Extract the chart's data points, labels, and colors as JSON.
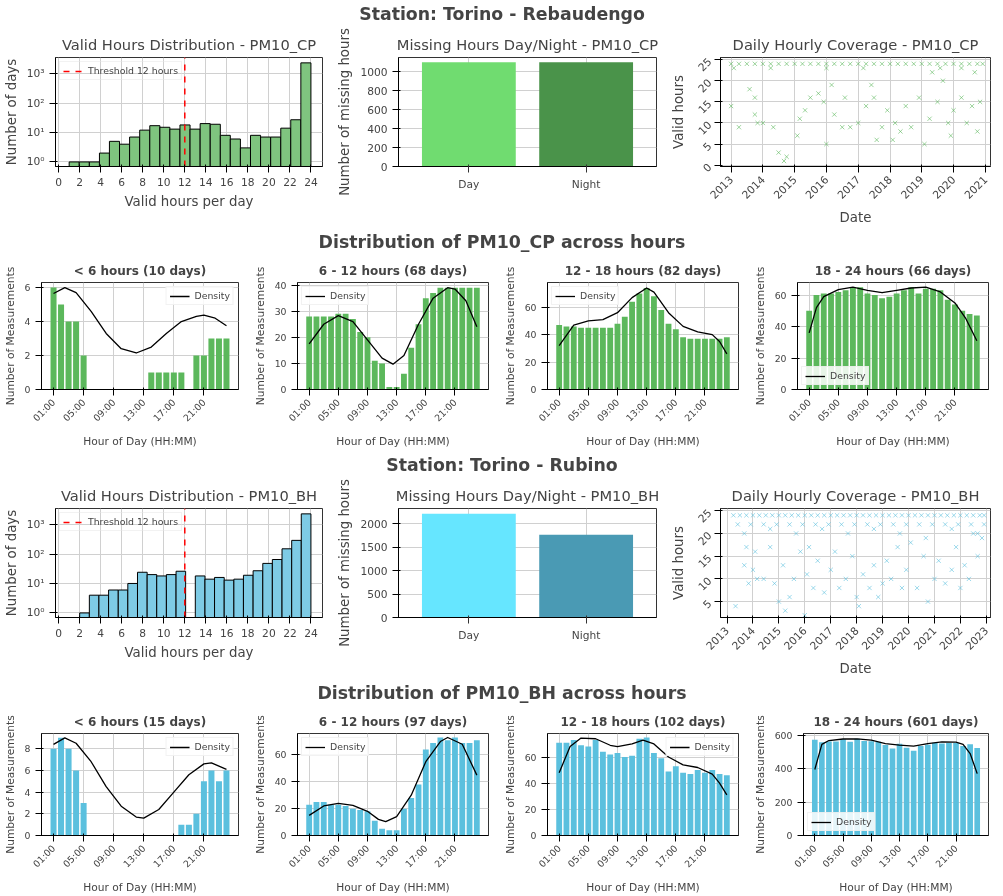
{
  "chart_data": [
    {
      "type": "other",
      "title": "Station: Torino - Rebaudengo"
    },
    {
      "type": "histogram",
      "title": "Valid Hours Distribution - PM10_CP",
      "xlabel": "Valid hours per day",
      "ylabel": "Number of days",
      "log": true,
      "grid": true,
      "legend": "top left",
      "color": "#7fc47f",
      "bins": [
        1,
        1.96,
        2.92,
        3.88,
        4.83,
        5.79,
        6.75,
        7.71,
        8.67,
        9.63,
        10.58,
        11.54,
        12.5,
        13.46,
        14.42,
        15.38,
        16.33,
        17.29,
        18.25,
        19.21,
        20.17,
        21.13,
        22.08,
        23.04,
        24
      ],
      "values": [
        1,
        1,
        1,
        2,
        5,
        4,
        7,
        12,
        17,
        15,
        13,
        18,
        13,
        20,
        19,
        8,
        6,
        3,
        8,
        7,
        7,
        14,
        27,
        2300
      ],
      "xlim": [
        -0.3,
        25.1
      ],
      "xticks": [
        0,
        2,
        4,
        6,
        8,
        10,
        12,
        14,
        16,
        18,
        20,
        22,
        24
      ],
      "ylim": [
        0.7,
        3500
      ],
      "yticks": [
        {
          "value": 1,
          "label": "10⁰"
        },
        {
          "value": 10,
          "label": "10¹"
        },
        {
          "value": 100,
          "label": "10²"
        },
        {
          "value": 1000,
          "label": "10³"
        }
      ],
      "ref_lines": [
        {
          "axis": "x",
          "value": 12,
          "label": "Threshold 12 hours",
          "color": "#ff0000",
          "line_style": "dashed"
        }
      ]
    },
    {
      "type": "bar",
      "title": "Missing Hours Day/Night - PM10_CP",
      "ylabel": "Number of missing hours",
      "grid": true,
      "categories": [
        "Day",
        "Night"
      ],
      "values": [
        1100,
        1100
      ],
      "colors": [
        "#70dc70",
        "#4a934a"
      ],
      "ylim": [
        0,
        1150
      ],
      "yticks": [
        0,
        200,
        400,
        600,
        800,
        1000
      ]
    },
    {
      "type": "scatter",
      "title": "Daily Hourly Coverage - PM10_CP",
      "xlabel": "Date",
      "ylabel": "Valid hours",
      "grid": true,
      "marker": "cross",
      "color": "#5cb85c",
      "x": [
        "2013-01",
        "2013-08",
        "2013-10",
        "2013-04",
        "2013-10",
        "2013-11",
        "2014-01",
        "2014-09",
        "2014-07",
        "2014-10",
        "2014-05",
        "2015-02",
        "2015-03",
        "2015-05",
        "2015-07",
        "2015-10",
        "2015-12",
        "2016-03",
        "2016-04",
        "2016-01",
        "2016-07",
        "2016-08",
        "2016-10",
        "2017-01",
        "2017-04",
        "2017-06",
        "2017-07",
        "2017-08",
        "2017-10",
        "2017-12",
        "2018-02",
        "2018-03",
        "2018-05",
        "2018-07",
        "2018-09",
        "2018-12",
        "2019-02",
        "2019-04",
        "2019-05",
        "2019-07",
        "2019-09",
        "2019-11",
        "2019-12",
        "2020-01",
        "2020-04",
        "2020-06",
        "2020-08",
        "2020-09",
        "2020-10",
        "2020-11",
        "2013-02",
        "2014-04",
        "2016-01",
        "2017-03",
        "2019-08",
        "2020-04",
        "2013-01",
        "2013-04",
        "2013-07",
        "2013-10",
        "2014-01",
        "2014-04",
        "2014-07",
        "2014-10",
        "2015-01",
        "2015-04",
        "2015-07",
        "2015-10",
        "2016-01",
        "2016-04",
        "2016-07",
        "2016-10",
        "2017-01",
        "2017-04",
        "2017-07",
        "2017-10",
        "2018-01",
        "2018-04",
        "2018-07",
        "2018-10",
        "2019-01",
        "2019-04",
        "2019-07",
        "2019-10",
        "2020-01",
        "2020-04",
        "2020-07",
        "2020-10",
        "2020-12"
      ],
      "values": [
        14,
        18,
        16,
        9,
        12,
        10,
        10,
        1,
        3,
        2,
        9,
        7,
        11,
        13,
        16,
        17,
        15,
        19,
        12,
        5,
        9,
        16,
        9,
        10,
        14,
        19,
        16,
        6,
        9,
        13,
        6,
        10,
        8,
        14,
        9,
        16,
        5,
        11,
        22,
        15,
        20,
        10,
        7,
        13,
        16,
        10,
        14,
        22,
        8,
        15,
        23,
        23,
        23,
        23,
        23,
        23,
        24,
        24,
        24,
        24,
        24,
        24,
        24,
        24,
        24,
        24,
        24,
        24,
        24,
        24,
        24,
        24,
        24,
        24,
        24,
        24,
        24,
        24,
        24,
        24,
        24,
        24,
        24,
        24,
        24,
        24,
        24,
        24,
        24
      ],
      "xlim": [
        "2012-09",
        "2021-03"
      ],
      "xticks": [
        "2013",
        "2014",
        "2015",
        "2016",
        "2017",
        "2018",
        "2019",
        "2020",
        "2021"
      ],
      "ylim": [
        -0.3,
        25.5
      ],
      "yticks": [
        0,
        5,
        10,
        15,
        20,
        25
      ]
    },
    {
      "type": "other",
      "title": "Distribution of PM10_CP across hours"
    },
    {
      "type": "bar",
      "title": "< 6 hours (10 days)",
      "xlabel": "Hour of Day (HH:MM)",
      "ylabel": "Number of Measurements",
      "grid": true,
      "legend": "top right",
      "x": [
        1,
        2,
        3,
        4,
        5,
        6,
        7,
        8,
        9,
        10,
        11,
        12,
        13,
        14,
        15,
        16,
        17,
        18,
        19,
        20,
        21,
        22,
        23,
        24
      ],
      "xlim": [
        -0.6,
        25.6
      ],
      "xticks": [
        {
          "value": 1,
          "label": "01:00"
        },
        {
          "value": 5,
          "label": "05:00"
        },
        {
          "value": 9,
          "label": "09:00"
        },
        {
          "value": 13,
          "label": "13:00"
        },
        {
          "value": 17,
          "label": "17:00"
        },
        {
          "value": 21,
          "label": "21:00"
        }
      ],
      "ylim": [
        0,
        6.3
      ],
      "yticks": [
        0,
        2,
        4,
        6
      ],
      "series": [
        {
          "color": "#5cb85c",
          "values": [
            6,
            5,
            4,
            4,
            2,
            0,
            0,
            0,
            0,
            0,
            0,
            0,
            0,
            1,
            1,
            1,
            1,
            1,
            0,
            2,
            2,
            3,
            3,
            3
          ]
        },
        {
          "type": "line",
          "name": "Density",
          "color": "#000000",
          "x": [
            1,
            2.5,
            4,
            6,
            8,
            10,
            12,
            14,
            16,
            18,
            20,
            21,
            22.5,
            24
          ],
          "values": [
            5.65,
            6.0,
            5.7,
            4.6,
            3.3,
            2.4,
            2.15,
            2.5,
            3.3,
            4.0,
            4.3,
            4.38,
            4.2,
            3.75
          ]
        }
      ]
    },
    {
      "type": "bar",
      "title": "6 - 12 hours (68 days)",
      "xlabel": "Hour of Day (HH:MM)",
      "ylabel": "Number of Measurements",
      "grid": true,
      "legend": "top left",
      "x": [
        1,
        2,
        3,
        4,
        5,
        6,
        7,
        8,
        9,
        10,
        11,
        12,
        13,
        14,
        15,
        16,
        17,
        18,
        19,
        20,
        21,
        22,
        23,
        24
      ],
      "xlim": [
        -0.6,
        25.6
      ],
      "xticks": [
        {
          "value": 1,
          "label": "01:00"
        },
        {
          "value": 5,
          "label": "05:00"
        },
        {
          "value": 9,
          "label": "09:00"
        },
        {
          "value": 13,
          "label": "13:00"
        },
        {
          "value": 17,
          "label": "17:00"
        },
        {
          "value": 21,
          "label": "21:00"
        }
      ],
      "ylim": [
        0,
        41
      ],
      "yticks": [
        0,
        10,
        20,
        30,
        40
      ],
      "series": [
        {
          "color": "#5cb85c",
          "values": [
            28,
            28,
            28,
            28,
            29,
            29,
            27,
            22,
            20,
            11,
            10,
            1,
            1,
            6,
            16,
            25,
            35,
            37,
            39,
            39,
            39,
            39,
            39,
            39
          ]
        },
        {
          "type": "line",
          "name": "Density",
          "color": "#000000",
          "x": [
            1,
            3,
            5,
            7,
            9,
            11,
            12.5,
            14,
            16,
            18,
            20,
            21,
            22.5,
            24
          ],
          "values": [
            17.5,
            25,
            28.3,
            26,
            19,
            12,
            9.7,
            13,
            25,
            35,
            39,
            38.5,
            34,
            24
          ]
        }
      ]
    },
    {
      "type": "bar",
      "title": "12 - 18 hours (82 days)",
      "xlabel": "Hour of Day (HH:MM)",
      "ylabel": "Number of Measurements",
      "grid": true,
      "legend": "top left",
      "x": [
        1,
        2,
        3,
        4,
        5,
        6,
        7,
        8,
        9,
        10,
        11,
        12,
        13,
        14,
        15,
        16,
        17,
        18,
        19,
        20,
        21,
        22,
        23,
        24
      ],
      "xlim": [
        -0.6,
        25.6
      ],
      "xticks": [
        {
          "value": 1,
          "label": "01:00"
        },
        {
          "value": 5,
          "label": "05:00"
        },
        {
          "value": 9,
          "label": "09:00"
        },
        {
          "value": 13,
          "label": "13:00"
        },
        {
          "value": 17,
          "label": "17:00"
        },
        {
          "value": 21,
          "label": "21:00"
        }
      ],
      "ylim": [
        0,
        78
      ],
      "yticks": [
        0,
        20,
        40,
        60
      ],
      "series": [
        {
          "color": "#5cb85c",
          "values": [
            47,
            46,
            46,
            45,
            45,
            45,
            45,
            45,
            48,
            53,
            64,
            70,
            74,
            68,
            58,
            48,
            44,
            38,
            37,
            37,
            37,
            37,
            37,
            38
          ]
        },
        {
          "type": "line",
          "name": "Density",
          "color": "#000000",
          "x": [
            1,
            3,
            5,
            7,
            9,
            11,
            13,
            14,
            16,
            18,
            20,
            22,
            23,
            24
          ],
          "values": [
            32,
            47,
            50,
            51,
            56,
            67,
            74,
            71,
            56,
            46,
            42,
            40,
            35,
            26
          ]
        }
      ]
    },
    {
      "type": "bar",
      "title": "18 - 24 hours (66 days)",
      "xlabel": "Hour of Day (HH:MM)",
      "ylabel": "Number of Measurements",
      "grid": true,
      "legend": "bottom left",
      "x": [
        1,
        2,
        3,
        4,
        5,
        6,
        7,
        8,
        9,
        10,
        11,
        12,
        13,
        14,
        15,
        16,
        17,
        18,
        19,
        20,
        21,
        22,
        23,
        24
      ],
      "xlim": [
        -0.6,
        25.6
      ],
      "xticks": [
        {
          "value": 1,
          "label": "01:00"
        },
        {
          "value": 5,
          "label": "05:00"
        },
        {
          "value": 9,
          "label": "09:00"
        },
        {
          "value": 13,
          "label": "13:00"
        },
        {
          "value": 17,
          "label": "17:00"
        },
        {
          "value": 21,
          "label": "21:00"
        }
      ],
      "ylim": [
        0,
        68
      ],
      "yticks": [
        0,
        20,
        40,
        60
      ],
      "series": [
        {
          "color": "#5cb85c",
          "values": [
            50,
            60,
            61,
            61,
            62,
            63,
            65,
            65,
            61,
            60,
            58,
            59,
            61,
            63,
            65,
            61,
            64,
            64,
            63,
            57,
            54,
            50,
            48,
            47
          ]
        },
        {
          "type": "line",
          "name": "Density",
          "color": "#000000",
          "x": [
            1,
            2,
            3,
            5,
            7,
            9,
            11,
            13,
            15,
            17,
            19,
            21,
            22.5,
            24
          ],
          "values": [
            36,
            52,
            59,
            63.5,
            65,
            63,
            61.5,
            63,
            64.5,
            65,
            62,
            55,
            45,
            31
          ]
        }
      ]
    },
    {
      "type": "other",
      "title": "Station: Torino - Rubino"
    },
    {
      "type": "histogram",
      "title": "Valid Hours Distribution - PM10_BH",
      "xlabel": "Valid hours per day",
      "ylabel": "Number of days",
      "log": true,
      "grid": true,
      "legend": "top left",
      "color": "#7ecbe5",
      "bins": [
        2,
        2.92,
        3.83,
        4.75,
        5.67,
        6.58,
        7.5,
        8.42,
        9.33,
        10.25,
        11.17,
        12.08,
        13,
        13.92,
        14.83,
        15.75,
        16.67,
        17.58,
        18.5,
        19.42,
        20.33,
        21.25,
        22.17,
        23.08,
        24
      ],
      "values": [
        1,
        4,
        4,
        6,
        6,
        10,
        24,
        20,
        18,
        20,
        26,
        null,
        18,
        14,
        16,
        13,
        14,
        19,
        27,
        48,
        65,
        150,
        290,
        2300
      ],
      "xlim": [
        -0.3,
        25.1
      ],
      "xticks": [
        0,
        2,
        4,
        6,
        8,
        10,
        12,
        14,
        16,
        18,
        20,
        22,
        24
      ],
      "ylim": [
        0.7,
        3500
      ],
      "yticks": [
        {
          "value": 1,
          "label": "10⁰"
        },
        {
          "value": 10,
          "label": "10¹"
        },
        {
          "value": 100,
          "label": "10²"
        },
        {
          "value": 1000,
          "label": "10³"
        }
      ],
      "ref_lines": [
        {
          "axis": "x",
          "value": 12,
          "label": "Threshold 12 hours",
          "color": "#ff0000",
          "line_style": "dashed"
        }
      ]
    },
    {
      "type": "bar",
      "title": "Missing Hours Day/Night - PM10_BH",
      "ylabel": "Number of missing hours",
      "grid": true,
      "categories": [
        "Day",
        "Night"
      ],
      "values": [
        2220,
        1770
      ],
      "colors": [
        "#66e6ff",
        "#4a9ab4"
      ],
      "ylim": [
        0,
        2330
      ],
      "yticks": [
        0,
        500,
        1000,
        1500,
        2000
      ]
    },
    {
      "type": "scatter",
      "title": "Daily Hourly Coverage - PM10_BH",
      "xlabel": "Date",
      "ylabel": "Valid hours",
      "grid": true,
      "marker": "cross",
      "color": "#5bc0de",
      "x": [
        "2013-05",
        "2013-09",
        "2013-10",
        "2013-11",
        "2014-01",
        "2014-02",
        "2014-03",
        "2014-06",
        "2014-09",
        "2014-11",
        "2015-01",
        "2015-03",
        "2015-04",
        "2015-06",
        "2015-08",
        "2015-11",
        "2016-01",
        "2016-02",
        "2016-03",
        "2016-05",
        "2016-07",
        "2016-10",
        "2017-01",
        "2017-03",
        "2017-05",
        "2017-08",
        "2017-11",
        "2018-01",
        "2018-02",
        "2018-04",
        "2018-07",
        "2018-09",
        "2018-11",
        "2019-01",
        "2019-03",
        "2019-05",
        "2019-08",
        "2019-10",
        "2019-12",
        "2020-02",
        "2020-05",
        "2020-08",
        "2020-10",
        "2021-01",
        "2021-03",
        "2021-06",
        "2021-09",
        "2021-11",
        "2022-01",
        "2022-03",
        "2022-05",
        "2022-07",
        "2022-09",
        "2022-11",
        "2013-06",
        "2013-12",
        "2014-06",
        "2014-12",
        "2015-06",
        "2015-12",
        "2016-06",
        "2016-12",
        "2017-06",
        "2017-12",
        "2018-06",
        "2018-12",
        "2019-06",
        "2019-12",
        "2020-06",
        "2020-12",
        "2021-06",
        "2021-12",
        "2022-06",
        "2022-12",
        "2013-09",
        "2014-09",
        "2015-09",
        "2016-09",
        "2017-09",
        "2018-09",
        "2019-09",
        "2020-09",
        "2021-09",
        "2022-09",
        "2013-04",
        "2013-07",
        "2013-10",
        "2014-01",
        "2014-04",
        "2014-07",
        "2014-10",
        "2015-01",
        "2015-04",
        "2015-07",
        "2015-10",
        "2016-01",
        "2016-04",
        "2016-07",
        "2016-10",
        "2017-01",
        "2017-04",
        "2017-07",
        "2017-10",
        "2018-01",
        "2018-04",
        "2018-07",
        "2018-10",
        "2019-01",
        "2019-04",
        "2019-07",
        "2019-10",
        "2020-01",
        "2020-04",
        "2020-07",
        "2020-10",
        "2021-01",
        "2021-04",
        "2021-07",
        "2021-10",
        "2022-01",
        "2022-04",
        "2022-07",
        "2022-10",
        "2022-12"
      ],
      "values": [
        4,
        13,
        17,
        9,
        12,
        16,
        10,
        10,
        17,
        9,
        5,
        13,
        3,
        6,
        10,
        16,
        2,
        11,
        17,
        8,
        14,
        7,
        12,
        16,
        8,
        10,
        15,
        6,
        4,
        11,
        8,
        13,
        6,
        9,
        14,
        10,
        17,
        8,
        12,
        18,
        8,
        15,
        5,
        10,
        14,
        9,
        12,
        17,
        8,
        13,
        10,
        20,
        15,
        19,
        22,
        22,
        22,
        22,
        22,
        22,
        22,
        22,
        22,
        22,
        22,
        22,
        22,
        22,
        22,
        22,
        22,
        22,
        22,
        22,
        20,
        21,
        20,
        21,
        20,
        21,
        20,
        19,
        21,
        20,
        24,
        24,
        24,
        24,
        24,
        24,
        24,
        24,
        24,
        24,
        24,
        24,
        24,
        24,
        24,
        24,
        24,
        24,
        24,
        24,
        24,
        24,
        24,
        24,
        24,
        24,
        24,
        24,
        24,
        24,
        24,
        24,
        24,
        24,
        24,
        24,
        24,
        24,
        24,
        24
      ],
      "xlim": [
        "2012-10",
        "2023-03"
      ],
      "xticks": [
        "2013",
        "2014",
        "2015",
        "2016",
        "2017",
        "2018",
        "2019",
        "2020",
        "2021",
        "2022",
        "2023"
      ],
      "ylim": [
        1.5,
        25.5
      ],
      "yticks": [
        5,
        10,
        15,
        20,
        25
      ]
    },
    {
      "type": "other",
      "title": "Distribution of PM10_BH across hours"
    },
    {
      "type": "bar",
      "title": "< 6 hours (15 days)",
      "xlabel": "Hour of Day (HH:MM)",
      "ylabel": "Number of Measurements",
      "grid": true,
      "legend": "top right",
      "x": [
        1,
        2,
        3,
        4,
        5,
        6,
        7,
        8,
        9,
        10,
        11,
        12,
        13,
        14,
        15,
        16,
        17,
        18,
        19,
        20,
        21,
        22,
        23,
        24
      ],
      "xlim": [
        -0.6,
        25.6
      ],
      "xticks": [
        {
          "value": 1,
          "label": "01:00"
        },
        {
          "value": 5,
          "label": "05:00"
        },
        {
          "value": 9,
          "label": "09:00"
        },
        {
          "value": 13,
          "label": "13:00"
        },
        {
          "value": 17,
          "label": "17:00"
        },
        {
          "value": 21,
          "label": "21:00"
        }
      ],
      "ylim": [
        0,
        9.4
      ],
      "yticks": [
        0,
        2,
        4,
        6,
        8
      ],
      "series": [
        {
          "color": "#5bc0de",
          "values": [
            8,
            9,
            8,
            6,
            3,
            0,
            0,
            0,
            0,
            0,
            0,
            0,
            0,
            0,
            0,
            0,
            0,
            1,
            1,
            2,
            5,
            6,
            5,
            6
          ]
        },
        {
          "type": "line",
          "name": "Density",
          "color": "#000000",
          "x": [
            1,
            2.5,
            4,
            6,
            8,
            10,
            12,
            13,
            15,
            17,
            19,
            21,
            22,
            24
          ],
          "values": [
            8.4,
            9.0,
            8.5,
            6.8,
            4.5,
            2.7,
            1.7,
            1.6,
            2.4,
            4.0,
            5.6,
            6.6,
            6.7,
            6.1
          ]
        }
      ]
    },
    {
      "type": "bar",
      "title": "6 - 12 hours (97 days)",
      "xlabel": "Hour of Day (HH:MM)",
      "ylabel": "Number of Measurements",
      "grid": true,
      "legend": "top left",
      "x": [
        1,
        2,
        3,
        4,
        5,
        6,
        7,
        8,
        9,
        10,
        11,
        12,
        13,
        14,
        15,
        16,
        17,
        18,
        19,
        20,
        21,
        22,
        23,
        24
      ],
      "xlim": [
        -0.6,
        25.6
      ],
      "xticks": [
        {
          "value": 1,
          "label": "01:00"
        },
        {
          "value": 5,
          "label": "05:00"
        },
        {
          "value": 9,
          "label": "09:00"
        },
        {
          "value": 13,
          "label": "13:00"
        },
        {
          "value": 17,
          "label": "17:00"
        },
        {
          "value": 21,
          "label": "21:00"
        }
      ],
      "ylim": [
        0,
        76
      ],
      "yticks": [
        0,
        20,
        40,
        60
      ],
      "series": [
        {
          "color": "#5bc0de",
          "values": [
            23,
            25,
            25,
            23,
            23,
            22,
            20,
            19,
            18,
            11,
            5,
            4,
            4,
            20,
            28,
            38,
            64,
            69,
            73,
            71,
            73,
            69,
            69,
            71
          ]
        },
        {
          "type": "line",
          "name": "Density",
          "color": "#000000",
          "x": [
            1,
            3,
            5,
            7,
            9,
            10.5,
            11.5,
            13,
            15,
            17,
            19,
            20,
            22,
            24
          ],
          "values": [
            15,
            22,
            24,
            22.5,
            18,
            12,
            10.3,
            14,
            30,
            55,
            70,
            73,
            68,
            45
          ]
        }
      ]
    },
    {
      "type": "bar",
      "title": "12 - 18 hours (102 days)",
      "xlabel": "Hour of Day (HH:MM)",
      "ylabel": "Number of Measurements",
      "grid": true,
      "legend": "top right",
      "x": [
        1,
        2,
        3,
        4,
        5,
        6,
        7,
        8,
        9,
        10,
        11,
        12,
        13,
        14,
        15,
        16,
        17,
        18,
        19,
        20,
        21,
        22,
        23,
        24
      ],
      "xlim": [
        -0.6,
        25.6
      ],
      "xticks": [
        {
          "value": 1,
          "label": "01:00"
        },
        {
          "value": 5,
          "label": "05:00"
        },
        {
          "value": 9,
          "label": "09:00"
        },
        {
          "value": 13,
          "label": "13:00"
        },
        {
          "value": 17,
          "label": "17:00"
        },
        {
          "value": 21,
          "label": "21:00"
        }
      ],
      "ylim": [
        0,
        78
      ],
      "yticks": [
        0,
        20,
        40,
        60
      ],
      "series": [
        {
          "color": "#5bc0de",
          "values": [
            71,
            71,
            73,
            69,
            68,
            73,
            64,
            62,
            63,
            60,
            61,
            74,
            75,
            63,
            59,
            49,
            53,
            48,
            47,
            50,
            48,
            50,
            47,
            46
          ]
        },
        {
          "type": "line",
          "name": "Density",
          "color": "#000000",
          "x": [
            1,
            2.5,
            4,
            6,
            8,
            9,
            11,
            12.5,
            14,
            16,
            18,
            20,
            22,
            23,
            24
          ],
          "values": [
            48,
            68,
            74.5,
            74,
            69,
            68,
            70,
            73,
            70,
            60,
            54,
            52,
            47,
            40,
            31
          ]
        }
      ]
    },
    {
      "type": "bar",
      "title": "18 - 24 hours (601 days)",
      "xlabel": "Hour of Day (HH:MM)",
      "ylabel": "Number of Measurements",
      "grid": true,
      "legend": "bottom left",
      "x": [
        1,
        2,
        3,
        4,
        5,
        6,
        7,
        8,
        9,
        10,
        11,
        12,
        13,
        14,
        15,
        16,
        17,
        18,
        19,
        20,
        21,
        22,
        23,
        24
      ],
      "xlim": [
        -0.6,
        25.6
      ],
      "xticks": [
        {
          "value": 1,
          "label": "01:00"
        },
        {
          "value": 5,
          "label": "05:00"
        },
        {
          "value": 9,
          "label": "09:00"
        },
        {
          "value": 13,
          "label": "13:00"
        },
        {
          "value": 17,
          "label": "17:00"
        },
        {
          "value": 21,
          "label": "21:00"
        }
      ],
      "ylim": [
        0,
        610
      ],
      "yticks": [
        0,
        200,
        400,
        600
      ],
      "series": [
        {
          "color": "#5bc0de",
          "values": [
            572,
            557,
            562,
            562,
            575,
            560,
            578,
            565,
            563,
            560,
            541,
            520,
            548,
            525,
            507,
            535,
            542,
            555,
            550,
            553,
            553,
            535,
            545,
            523
          ]
        },
        {
          "type": "line",
          "name": "Density",
          "color": "#000000",
          "x": [
            1,
            2,
            3,
            5,
            7,
            9,
            11,
            13,
            15,
            17,
            19,
            21,
            22,
            23,
            24
          ],
          "values": [
            395,
            545,
            568,
            577,
            578,
            570,
            550,
            540,
            535,
            550,
            560,
            558,
            545,
            490,
            370
          ]
        }
      ]
    }
  ]
}
